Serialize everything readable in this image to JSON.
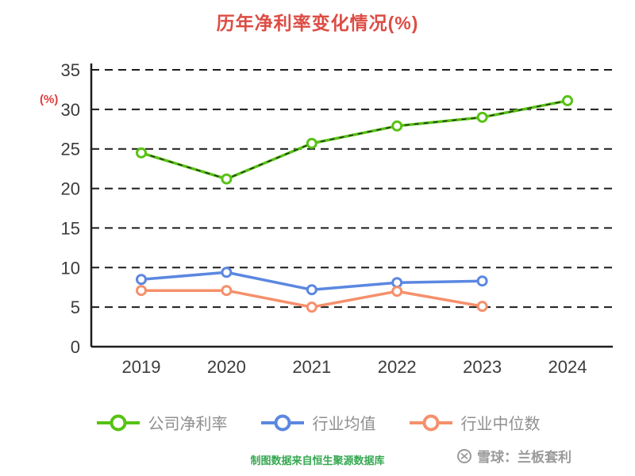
{
  "chart_data": {
    "type": "line",
    "title": "历年净利率变化情况(%)",
    "ylabel": "(%)",
    "xlabel": "",
    "categories": [
      "2019",
      "2020",
      "2021",
      "2022",
      "2023",
      "2024"
    ],
    "series": [
      {
        "name": "公司净利率",
        "color": "#57c213",
        "dash_overlay": true,
        "values": [
          24.5,
          21.2,
          25.7,
          27.9,
          29.0,
          31.1
        ]
      },
      {
        "name": "行业均值",
        "color": "#5b87e0",
        "dash_overlay": false,
        "values": [
          8.5,
          9.4,
          7.2,
          8.1,
          8.3,
          null
        ]
      },
      {
        "name": "行业中位数",
        "color": "#f5906b",
        "dash_overlay": false,
        "values": [
          7.1,
          7.1,
          5.0,
          7.0,
          5.1,
          null
        ]
      }
    ],
    "ylim": [
      0,
      35
    ],
    "yticks": [
      0,
      5,
      10,
      15,
      20,
      25,
      30,
      35
    ],
    "grid": "horizontal-dashed",
    "legend_position": "bottom"
  },
  "footer": {
    "source_note": "制图数据来自恒生聚源数据库",
    "brand": "雪球：兰板套利"
  },
  "colors": {
    "title": "#dd4c44",
    "ylabel": "#e03c3c",
    "axis": "#1c1c1c",
    "tick_label": "#3c3c3c",
    "legend_label": "#8f8f8f",
    "source_note": "#35a850",
    "brand": "#9a9a9a",
    "marker_fill": "#ffffff",
    "background": "#ffffff"
  }
}
